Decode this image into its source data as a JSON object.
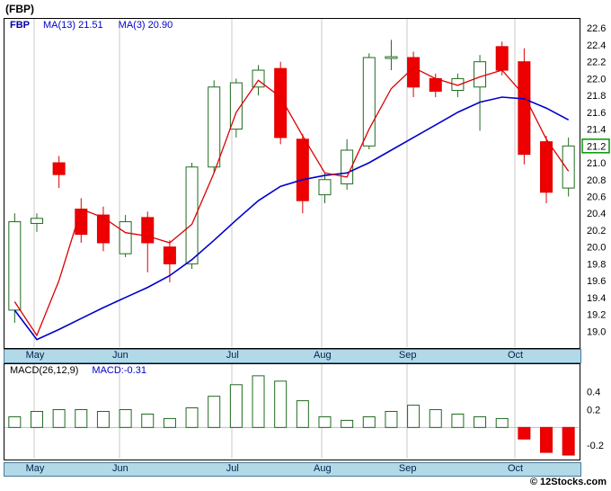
{
  "header": {
    "title": "(FBP)"
  },
  "footer": {
    "watermark": "© 12Stocks.com"
  },
  "colors": {
    "up_stroke": "#1f6b1f",
    "up_fill": "#ffffff",
    "down_stroke": "#dd0000",
    "down_fill": "#ee0000",
    "ma13_line": "#0000cc",
    "ma3_line": "#dd0000",
    "grid": "#c9c9c9",
    "zero_line": "#bbbbbb",
    "axis_text": "#000000",
    "panel_border": "#000000",
    "axis_strip_bg": "#b2d9e8",
    "axis_strip_border": "#4a7a96",
    "month_text": "#00224a",
    "legend_blue": "#0000cc",
    "badge_border": "#009900"
  },
  "months": {
    "labels": [
      "May",
      "Jun",
      "Jul",
      "Aug",
      "Sep",
      "Oct"
    ],
    "fractions": [
      0.053,
      0.201,
      0.396,
      0.552,
      0.7,
      0.887
    ]
  },
  "chart_data": [
    {
      "type": "candlestick",
      "title": "FBP weekly price with moving averages",
      "legend": {
        "symbol": "FBP",
        "ma13": "MA(13)  21.51",
        "ma3": "MA(3)  20.90"
      },
      "ylim": [
        18.8,
        22.72
      ],
      "yticks": [
        22.6,
        22.4,
        22.2,
        22.0,
        21.8,
        21.6,
        21.4,
        21.2,
        21.0,
        20.8,
        20.6,
        20.4,
        20.2,
        20.0,
        19.8,
        19.6,
        19.4,
        19.2,
        19.0
      ],
      "xticks": [
        "May",
        "Jun",
        "Jul",
        "Aug",
        "Sep",
        "Oct"
      ],
      "grid": "vertical-months",
      "legend_position": "top-left",
      "last_price": 21.2,
      "last_price_label": "21.2",
      "candles_ohlc": [
        [
          19.25,
          20.4,
          19.1,
          20.3
        ],
        [
          20.28,
          20.4,
          20.18,
          20.34
        ],
        [
          21.0,
          21.08,
          20.7,
          20.86
        ],
        [
          20.45,
          20.58,
          20.05,
          20.15
        ],
        [
          20.38,
          20.48,
          19.95,
          20.05
        ],
        [
          19.92,
          20.38,
          19.88,
          20.3
        ],
        [
          20.35,
          20.42,
          19.7,
          20.05
        ],
        [
          20.0,
          20.08,
          19.58,
          19.8
        ],
        [
          19.8,
          21.0,
          19.74,
          20.95
        ],
        [
          20.95,
          21.98,
          20.88,
          21.9
        ],
        [
          21.4,
          22.0,
          21.3,
          21.95
        ],
        [
          21.9,
          22.16,
          21.8,
          22.1
        ],
        [
          22.12,
          22.2,
          21.22,
          21.3
        ],
        [
          21.28,
          21.34,
          20.4,
          20.55
        ],
        [
          20.62,
          20.88,
          20.52,
          20.8
        ],
        [
          20.75,
          21.28,
          20.68,
          21.15
        ],
        [
          21.2,
          22.3,
          21.16,
          22.25
        ],
        [
          22.24,
          22.46,
          22.1,
          22.26
        ],
        [
          22.25,
          22.32,
          21.78,
          21.9
        ],
        [
          22.0,
          22.06,
          21.78,
          21.85
        ],
        [
          21.86,
          22.06,
          21.78,
          22.0
        ],
        [
          21.9,
          22.28,
          21.38,
          22.2
        ],
        [
          22.38,
          22.44,
          22.04,
          22.1
        ],
        [
          22.2,
          22.36,
          20.98,
          21.1
        ],
        [
          21.25,
          21.32,
          20.52,
          20.65
        ],
        [
          20.7,
          21.3,
          20.6,
          21.2
        ]
      ],
      "series": [
        {
          "name": "MA(13)",
          "value_now": 21.51,
          "values": [
            19.25,
            18.9,
            19.02,
            19.15,
            19.28,
            19.4,
            19.52,
            19.66,
            19.85,
            20.08,
            20.32,
            20.55,
            20.72,
            20.8,
            20.85,
            20.88,
            21.0,
            21.15,
            21.3,
            21.45,
            21.6,
            21.72,
            21.78,
            21.76,
            21.65,
            21.51
          ]
        },
        {
          "name": "MA(3)",
          "value_now": 20.9,
          "values": [
            19.35,
            18.95,
            19.6,
            20.45,
            20.35,
            20.17,
            20.13,
            20.05,
            20.27,
            20.88,
            21.6,
            21.98,
            21.78,
            21.32,
            20.88,
            20.83,
            21.4,
            21.88,
            22.13,
            22.0,
            21.92,
            22.02,
            22.1,
            21.8,
            21.28,
            20.9
          ]
        }
      ]
    },
    {
      "type": "bar",
      "title": "MACD(26,12,9)",
      "legend": {
        "name": "MACD(26,12,9)",
        "value": "MACD:-0.31"
      },
      "ylim": [
        -0.36,
        0.72
      ],
      "yticks": [
        0.4,
        0.2,
        -0.2
      ],
      "xticks": [
        "May",
        "Jun",
        "Jul",
        "Aug",
        "Sep",
        "Oct"
      ],
      "grid": "vertical-months",
      "macd_now": -0.31,
      "values": [
        0.12,
        0.18,
        0.2,
        0.2,
        0.18,
        0.2,
        0.15,
        0.1,
        0.22,
        0.35,
        0.48,
        0.58,
        0.52,
        0.3,
        0.12,
        0.08,
        0.12,
        0.18,
        0.25,
        0.2,
        0.15,
        0.12,
        0.1,
        -0.13,
        -0.28,
        -0.31
      ]
    }
  ]
}
